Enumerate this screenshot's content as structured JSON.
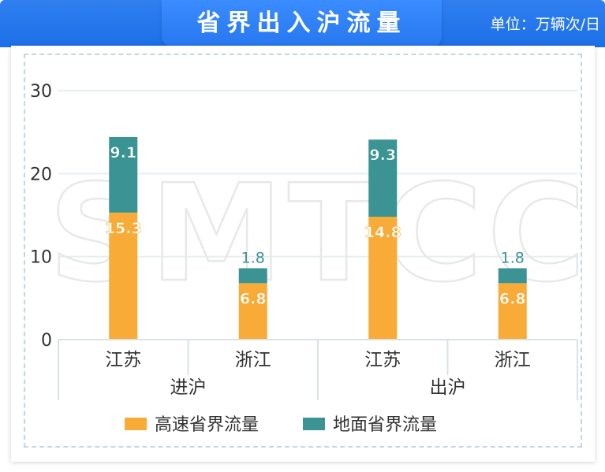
{
  "header": {
    "title": "省界出入沪流量",
    "unit_label": "单位：万辆次/日"
  },
  "watermark": "SMTCC",
  "colors": {
    "header_blue": "#2f7ff0",
    "highway": "#f8ab37",
    "ground": "#3b9393",
    "grid": "#e6eef0",
    "axis_text": "#333333"
  },
  "chart_data": {
    "type": "bar",
    "stacked": true,
    "ylim": [
      0,
      30
    ],
    "yticks": [
      0,
      10,
      20,
      30
    ],
    "groups": [
      {
        "label": "进沪",
        "categories": [
          "江苏",
          "浙江"
        ]
      },
      {
        "label": "出沪",
        "categories": [
          "江苏",
          "浙江"
        ]
      }
    ],
    "series": [
      {
        "name": "高速省界流量",
        "color": "#f8ab37",
        "values": [
          15.3,
          6.8,
          14.8,
          6.8
        ]
      },
      {
        "name": "地面省界流量",
        "color": "#3b9393",
        "values": [
          9.1,
          1.8,
          9.3,
          1.8
        ]
      }
    ],
    "legend_position": "bottom",
    "grid": true
  }
}
